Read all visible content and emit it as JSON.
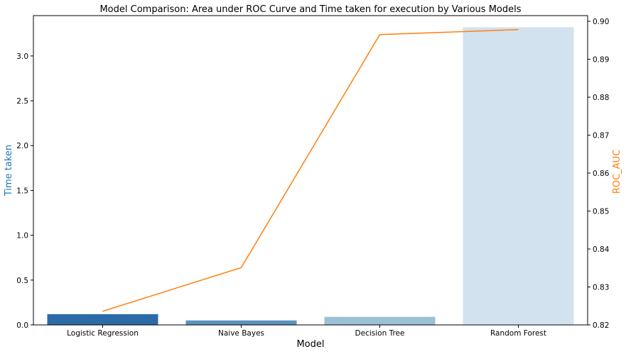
{
  "chart_data": {
    "type": "bar",
    "title": "Model Comparison: Area under ROC Curve and Time taken for execution by Various Models",
    "xlabel": "Model",
    "ylabel": "Time taken",
    "y2label": "ROC_AUC",
    "categories": [
      "Logistic Regression",
      "Naive Bayes",
      "Decision Tree",
      "Random Forest"
    ],
    "series": [
      {
        "kind": "bar",
        "axis": "left",
        "values": [
          0.12,
          0.05,
          0.09,
          3.32
        ],
        "colors": [
          "#2c6aa8",
          "#5a93bf",
          "#9cc0d4",
          "#d3e2ef"
        ]
      },
      {
        "kind": "line",
        "axis": "right",
        "values": [
          0.8236,
          0.8351,
          0.8965,
          0.8978
        ],
        "color": "#ff7f0e"
      }
    ],
    "ylim": [
      0,
      3.45
    ],
    "yticks": [
      0.0,
      0.5,
      1.0,
      1.5,
      2.0,
      2.5,
      3.0
    ],
    "ytick_labels": [
      "0.0",
      "0.5",
      "1.0",
      "1.5",
      "2.0",
      "2.5",
      "3.0"
    ],
    "y2lim": [
      0.82,
      0.9015
    ],
    "y2ticks": [
      0.82,
      0.83,
      0.84,
      0.85,
      0.86,
      0.87,
      0.88,
      0.89,
      0.9
    ],
    "y2tick_labels": [
      "0.82",
      "0.83",
      "0.84",
      "0.85",
      "0.86",
      "0.87",
      "0.88",
      "0.89",
      "0.90"
    ],
    "ylabel_color": "#1f77b4",
    "y2label_color": "#ff7f0e",
    "grid": false,
    "legend": "none"
  }
}
